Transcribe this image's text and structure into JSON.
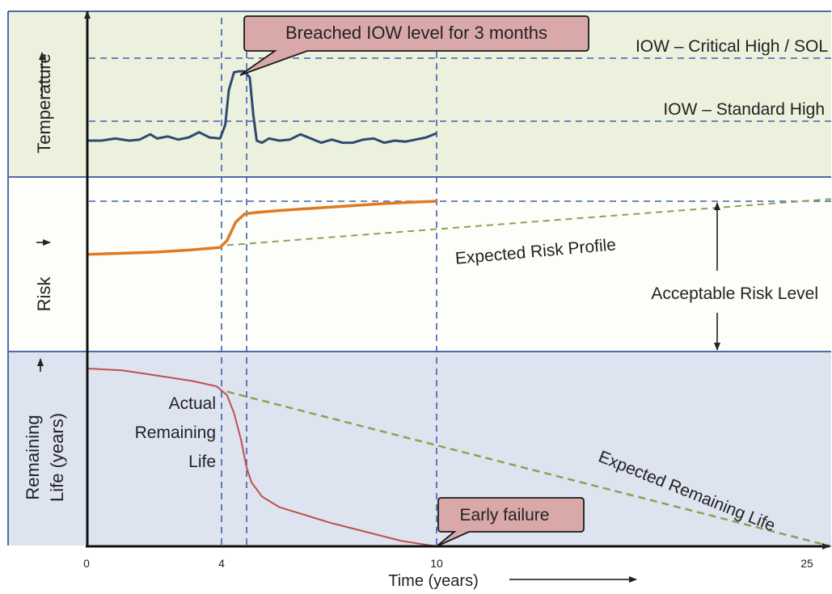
{
  "chart_data": [
    {
      "panel": "temperature",
      "type": "line",
      "ylabel": "Temperature",
      "xlim": [
        0,
        10
      ],
      "ylim": [
        0,
        100
      ],
      "series": [
        {
          "color": "#2e4a72",
          "x": [
            0,
            0.4,
            0.8,
            1.2,
            1.5,
            1.8,
            2.0,
            2.3,
            2.6,
            2.9,
            3.2,
            3.5,
            3.8,
            3.95,
            4.05,
            4.2,
            4.35,
            4.5,
            4.65,
            4.75,
            4.85,
            5.0,
            5.2,
            5.5,
            5.8,
            6.1,
            6.4,
            6.7,
            7.0,
            7.3,
            7.6,
            7.9,
            8.2,
            8.5,
            8.8,
            9.1,
            9.4,
            9.7,
            10.0
          ],
          "y": [
            20,
            20,
            22,
            20,
            21,
            26,
            22,
            24,
            21,
            23,
            28,
            23,
            22,
            35,
            68,
            85,
            86,
            86,
            80,
            45,
            20,
            18,
            22,
            20,
            21,
            26,
            22,
            18,
            21,
            18,
            18,
            21,
            22,
            18,
            20,
            19,
            21,
            23,
            27
          ]
        }
      ],
      "thresholds": [
        {
          "name": "IOW – Critical High / SOL",
          "value": 75
        },
        {
          "name": "IOW – Standard High",
          "value": 35
        }
      ],
      "annotations": [
        "Breached IOW level for 3 months"
      ]
    },
    {
      "panel": "risk",
      "type": "line",
      "ylabel": "Risk",
      "xlim": [
        0,
        25
      ],
      "ylim": [
        0,
        100
      ],
      "series": [
        {
          "color": "#e07a22",
          "x": [
            0,
            1,
            2,
            3,
            3.8,
            4,
            4.25,
            4.5,
            4.75,
            5.5,
            6.5,
            7.5,
            8.5,
            9.2,
            10
          ],
          "y": [
            40,
            41,
            42,
            44,
            46,
            52,
            68,
            75,
            76,
            78,
            80,
            82,
            84,
            85,
            86
          ]
        },
        {
          "name": "Expected Risk Profile",
          "color": "#8ca252",
          "dashed": true,
          "x": [
            4,
            25
          ],
          "y": [
            48,
            88
          ]
        }
      ],
      "acceptable_level": 86,
      "annotations": [
        "Expected Risk Profile",
        "Acceptable Risk Level"
      ]
    },
    {
      "panel": "remaining_life",
      "type": "line",
      "xlabel": "Time (years)",
      "ylabel": "Remaining Life (years)",
      "xlim": [
        0,
        25
      ],
      "ylim": [
        0,
        100
      ],
      "x_ticks": [
        0,
        4,
        10,
        25
      ],
      "series": [
        {
          "name": "Actual Remaining Life",
          "color": "#c0504d",
          "x": [
            0,
            1,
            2,
            3,
            3.7,
            4,
            4.2,
            4.4,
            4.55,
            4.7,
            5.0,
            5.5,
            6,
            7,
            8,
            9,
            10
          ],
          "y": [
            100,
            99,
            96,
            93,
            90,
            85,
            75,
            60,
            45,
            36,
            28,
            22,
            19,
            13,
            8,
            3,
            0
          ]
        },
        {
          "name": "Expected Remaining Life",
          "color": "#8ca252",
          "dashed": true,
          "x": [
            4,
            25
          ],
          "y": [
            87,
            0
          ]
        }
      ],
      "annotations": [
        "Early failure"
      ]
    }
  ],
  "labels": {
    "temperature_axis": "Temperature",
    "risk_axis": "Risk",
    "remaining_life_axis_line1": "Remaining",
    "remaining_life_axis_line2": "Life (years)",
    "critical_high": "IOW – Critical High / SOL",
    "standard_high": "IOW – Standard High",
    "breach_callout": "Breached IOW level for 3 months",
    "expected_risk": "Expected Risk Profile",
    "acceptable_risk": "Acceptable Risk Level",
    "actual_remaining_line1": "Actual",
    "actual_remaining_line2": "Remaining",
    "actual_remaining_line3": "Life",
    "expected_remaining": "Expected Remaining Life",
    "early_failure": "Early failure",
    "x_axis_title": "Time (years)",
    "tick_0": "0",
    "tick_4": "4",
    "tick_10": "10",
    "tick_25": "25"
  },
  "colors": {
    "temperature_band": "#ebf1dd",
    "risk_band": "#fdfdfa",
    "life_band": "#dde3ef",
    "panel_border": "#4f6aa8",
    "guide_dash": "#4060b0",
    "callout_fill": "#d9a9a9",
    "callout_border": "#1a1a1a"
  }
}
